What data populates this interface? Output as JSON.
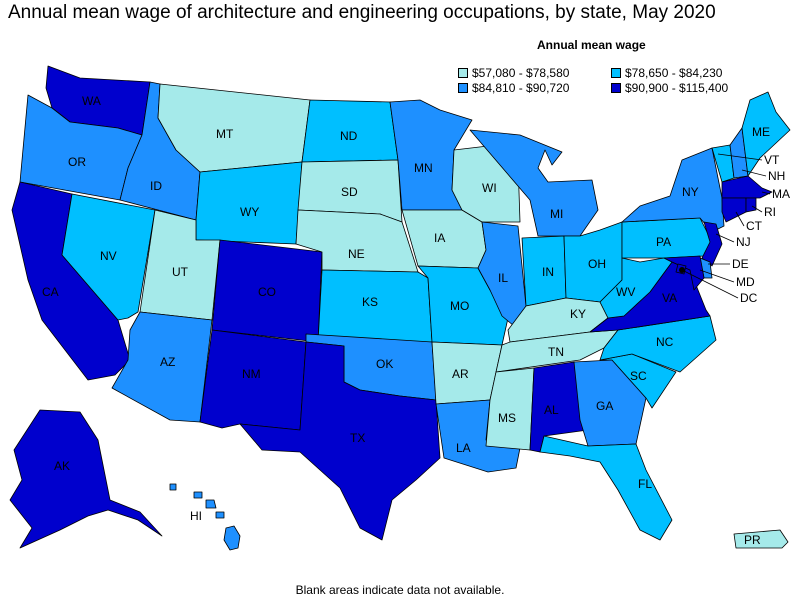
{
  "title": "Annual mean wage of architecture and engineering occupations, by state, May 2020",
  "legend": {
    "title": "Annual mean wage",
    "items": [
      {
        "label": "$57,080 - $78,580",
        "color": "#a5eaea"
      },
      {
        "label": "$78,650 - $84,230",
        "color": "#00bfff"
      },
      {
        "label": "$84,810 - $90,720",
        "color": "#1e90ff"
      },
      {
        "label": "$90,900 - $115,400",
        "color": "#0000cd"
      }
    ]
  },
  "footnote": "Blank areas indicate data not available.",
  "states": {
    "WA": {
      "label": "WA",
      "tier": 3
    },
    "OR": {
      "label": "OR",
      "tier": 2
    },
    "CA": {
      "label": "CA",
      "tier": 3
    },
    "NV": {
      "label": "NV",
      "tier": 1
    },
    "ID": {
      "label": "ID",
      "tier": 2
    },
    "MT": {
      "label": "MT",
      "tier": 0
    },
    "WY": {
      "label": "WY",
      "tier": 1
    },
    "UT": {
      "label": "UT",
      "tier": 0
    },
    "AZ": {
      "label": "AZ",
      "tier": 2
    },
    "CO": {
      "label": "CO",
      "tier": 3
    },
    "NM": {
      "label": "NM",
      "tier": 3
    },
    "ND": {
      "label": "ND",
      "tier": 1
    },
    "SD": {
      "label": "SD",
      "tier": 0
    },
    "NE": {
      "label": "NE",
      "tier": 0
    },
    "KS": {
      "label": "KS",
      "tier": 1
    },
    "OK": {
      "label": "OK",
      "tier": 2
    },
    "TX": {
      "label": "TX",
      "tier": 3
    },
    "MN": {
      "label": "MN",
      "tier": 2
    },
    "IA": {
      "label": "IA",
      "tier": 0
    },
    "MO": {
      "label": "MO",
      "tier": 1
    },
    "AR": {
      "label": "AR",
      "tier": 0
    },
    "LA": {
      "label": "LA",
      "tier": 2
    },
    "WI": {
      "label": "WI",
      "tier": 0
    },
    "IL": {
      "label": "IL",
      "tier": 2
    },
    "MI": {
      "label": "MI",
      "tier": 2
    },
    "IN": {
      "label": "IN",
      "tier": 1
    },
    "OH": {
      "label": "OH",
      "tier": 1
    },
    "KY": {
      "label": "KY",
      "tier": 0
    },
    "TN": {
      "label": "TN",
      "tier": 0
    },
    "MS": {
      "label": "MS",
      "tier": 0
    },
    "AL": {
      "label": "AL",
      "tier": 3
    },
    "GA": {
      "label": "GA",
      "tier": 2
    },
    "FL": {
      "label": "FL",
      "tier": 1
    },
    "SC": {
      "label": "SC",
      "tier": 1
    },
    "NC": {
      "label": "NC",
      "tier": 1
    },
    "VA": {
      "label": "VA",
      "tier": 3
    },
    "WV": {
      "label": "WV",
      "tier": 1
    },
    "PA": {
      "label": "PA",
      "tier": 1
    },
    "NY": {
      "label": "NY",
      "tier": 2
    },
    "VT": {
      "label": "VT",
      "tier": 1
    },
    "NH": {
      "label": "NH",
      "tier": 2
    },
    "ME": {
      "label": "ME",
      "tier": 1
    },
    "MA": {
      "label": "MA",
      "tier": 3
    },
    "RI": {
      "label": "RI",
      "tier": 3
    },
    "CT": {
      "label": "CT",
      "tier": 3
    },
    "NJ": {
      "label": "NJ",
      "tier": 3
    },
    "DE": {
      "label": "DE",
      "tier": 2
    },
    "MD": {
      "label": "MD",
      "tier": 3
    },
    "DC": {
      "label": "DC",
      "tier": 3
    },
    "AK": {
      "label": "AK",
      "tier": 3
    },
    "HI": {
      "label": "HI",
      "tier": 2
    },
    "PR": {
      "label": "PR",
      "tier": 0
    }
  }
}
